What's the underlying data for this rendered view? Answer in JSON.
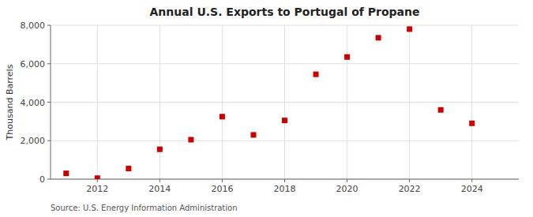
{
  "chart_data": {
    "type": "scatter",
    "title": "Annual U.S. Exports to Portugal of Propane",
    "y_label": "Thousand Barrels",
    "source": "Source: U.S. Energy Information Administration",
    "x": [
      2011,
      2012,
      2013,
      2014,
      2015,
      2016,
      2017,
      2018,
      2019,
      2020,
      2021,
      2022,
      2023,
      2024
    ],
    "values": [
      300,
      50,
      550,
      1550,
      2050,
      3250,
      2300,
      3050,
      5450,
      6350,
      7350,
      7800,
      3600,
      2900
    ],
    "color": "#cc0000",
    "marker": "square",
    "xlim": [
      2010.5,
      2025.5
    ],
    "xticks": [
      2012,
      2014,
      2016,
      2018,
      2020,
      2022,
      2024
    ],
    "ylim": [
      0,
      8000
    ],
    "yticks": [
      0,
      {
        "value": 2000,
        "label": "2,000"
      },
      {
        "value": 4000,
        "label": "4,000"
      },
      {
        "value": 6000,
        "label": "6,000"
      },
      {
        "value": 8000,
        "label": "8,000"
      }
    ],
    "grid": true
  }
}
